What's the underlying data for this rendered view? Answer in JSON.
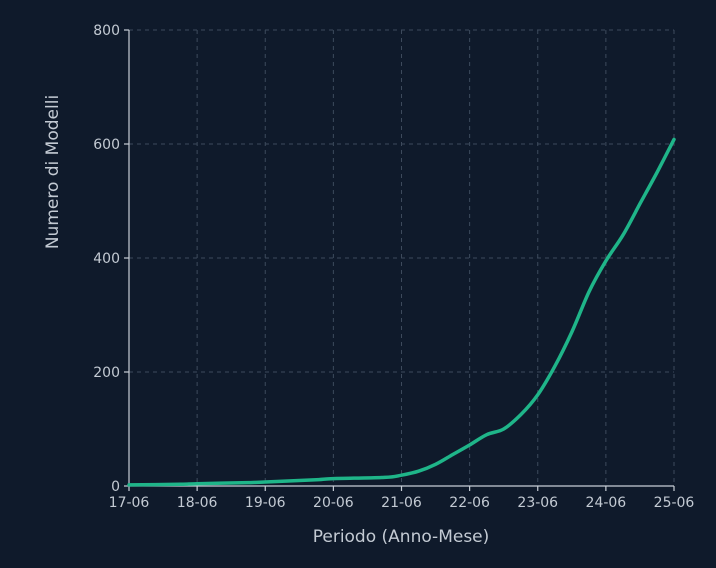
{
  "chart_data": {
    "type": "line",
    "title": "",
    "xlabel": "Periodo (Anno-Mese)",
    "ylabel": "Numero di Modelli",
    "x_ticks": [
      "17-06",
      "18-06",
      "19-06",
      "20-06",
      "21-06",
      "22-06",
      "23-06",
      "24-06",
      "25-06"
    ],
    "y_ticks": [
      0,
      200,
      400,
      600,
      800
    ],
    "ylim": [
      0,
      800
    ],
    "grid": true,
    "line_color": "#1fb589",
    "series": [
      {
        "name": "",
        "points": [
          [
            "17-06",
            2
          ],
          [
            "18-03",
            3
          ],
          [
            "18-06",
            4
          ],
          [
            "19-03",
            6
          ],
          [
            "19-06",
            7
          ],
          [
            "20-03",
            11
          ],
          [
            "20-06",
            13
          ],
          [
            "21-03",
            15
          ],
          [
            "21-06",
            19
          ],
          [
            "21-09",
            26
          ],
          [
            "21-12",
            38
          ],
          [
            "22-03",
            55
          ],
          [
            "22-06",
            72
          ],
          [
            "22-09",
            90
          ],
          [
            "22-12",
            100
          ],
          [
            "23-03",
            125
          ],
          [
            "23-06",
            160
          ],
          [
            "23-09",
            210
          ],
          [
            "23-12",
            270
          ],
          [
            "24-03",
            340
          ],
          [
            "24-06",
            395
          ],
          [
            "24-09",
            440
          ],
          [
            "24-12",
            495
          ],
          [
            "25-03",
            550
          ],
          [
            "25-06",
            608
          ]
        ]
      }
    ]
  }
}
